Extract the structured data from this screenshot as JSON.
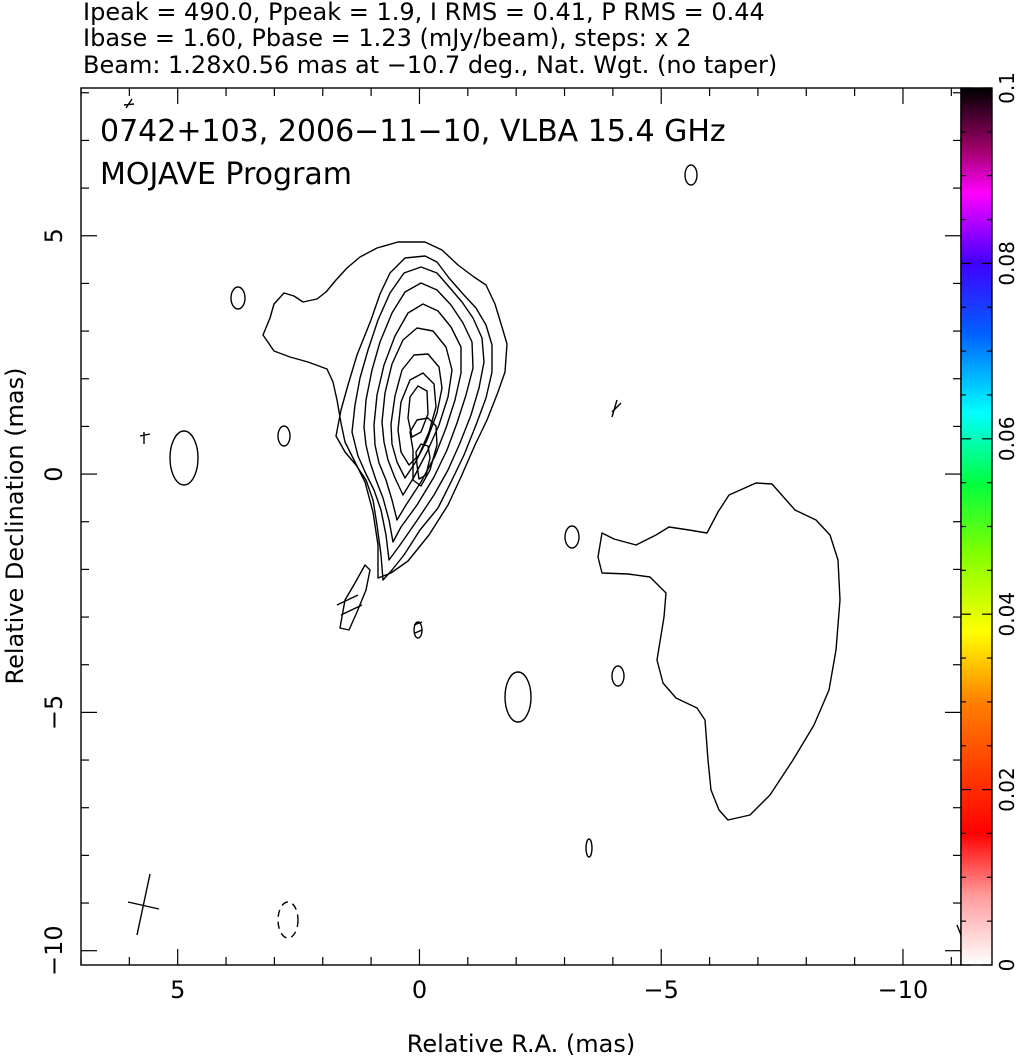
{
  "header": {
    "line1": "Ipeak = 490.0, Ppeak = 1.9, I RMS = 0.41, P RMS = 0.44",
    "line2": "Ibase = 1.60, Pbase = 1.23 (mJy/beam), steps: x 2",
    "line3": "Beam: 1.28x0.56 mas at −10.7 deg., Nat. Wgt. (no taper)"
  },
  "chart_data": {
    "type": "contour",
    "title": "0742+103, 2006−11−10, VLBA 15.4 GHz",
    "subtitle": "MOJAVE Program",
    "xlabel": "Relative R.A. (mas)",
    "ylabel": "Relative Declination (mas)",
    "xlim": [
      7.0,
      -11.2
    ],
    "ylim": [
      -10.3,
      8.1
    ],
    "x_reversed": true,
    "x_ticks": [
      {
        "value": 5,
        "label": "5"
      },
      {
        "value": 0,
        "label": "0"
      },
      {
        "value": -5,
        "label": "−5"
      },
      {
        "value": -10,
        "label": "−10"
      }
    ],
    "y_ticks": [
      {
        "value": 5,
        "label": "5"
      },
      {
        "value": 0,
        "label": "0"
      },
      {
        "value": -5,
        "label": "−5"
      },
      {
        "value": -10,
        "label": "−10"
      }
    ],
    "contour_base_mJy_per_beam": 1.6,
    "contour_step_factor": 2,
    "peak_mJy_per_beam": 490.0,
    "core_position_mas": [
      0.0,
      0.2
    ],
    "beam": {
      "major_mas": 1.28,
      "minor_mas": 0.56,
      "pa_deg": -10.7,
      "center_mas": [
        5.9,
        -9.3
      ]
    },
    "colorbar": {
      "vmin": 0,
      "vmax": 0.1,
      "tick_labels": [
        {
          "value": 0,
          "label": "0"
        },
        {
          "value": 0.02,
          "label": "0.02"
        },
        {
          "value": 0.04,
          "label": "0.04"
        },
        {
          "value": 0.06,
          "label": "0.06"
        },
        {
          "value": 0.08,
          "label": "0.08"
        },
        {
          "value": 0.1,
          "label": "0.1"
        }
      ],
      "colors": [
        "#ffffff",
        "#ff0000",
        "#ff7f00",
        "#ffff00",
        "#00ff00",
        "#00ffff",
        "#0000ff",
        "#ff00ff",
        "#000000"
      ]
    }
  }
}
